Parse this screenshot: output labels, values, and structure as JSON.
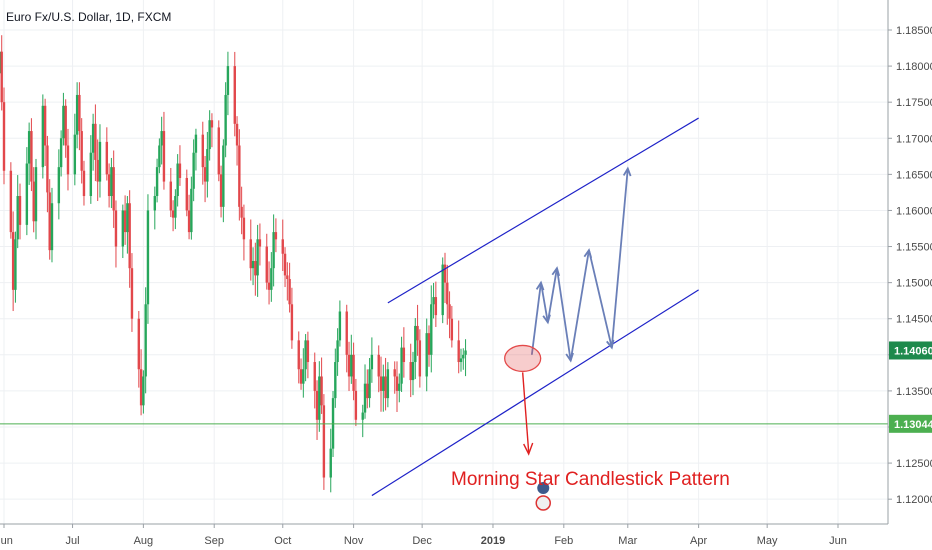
{
  "chart_data": {
    "type": "candlestick",
    "title": "Euro Fx/U.S. Dollar, 1D, FXCM",
    "xlabel": "",
    "ylabel": "",
    "ylim": [
      1.1185,
      1.1895
    ],
    "grid": true,
    "y_ticks": [
      "1.18500",
      "1.18000",
      "1.17500",
      "1.17000",
      "1.16500",
      "1.16000",
      "1.15500",
      "1.15000",
      "1.14500",
      "1.14000",
      "1.13500",
      "1.13000",
      "1.12500",
      "1.12000"
    ],
    "x_tick_labels": [
      "Jun",
      "Jul",
      "Aug",
      "Sep",
      "Oct",
      "Nov",
      "Dec",
      "2019",
      "Feb",
      "Mar",
      "Apr",
      "May",
      "Jun"
    ],
    "price_labels": {
      "current": {
        "text": "1.14060",
        "value": 1.1406,
        "color": "#1e8a4c"
      },
      "support": {
        "text": "1.13044",
        "value": 1.13044,
        "color": "#4caf50"
      }
    },
    "candles_close": [
      1.164,
      1.17,
      1.1745,
      1.169,
      1.161,
      1.172,
      1.179,
      1.182,
      1.175,
      1.1655,
      1.157,
      1.149,
      1.156,
      1.162,
      1.158,
      1.1665,
      1.171,
      1.164,
      1.1585,
      1.166,
      1.1745,
      1.169,
      1.1625,
      1.1545,
      1.161,
      1.166,
      1.17,
      1.1745,
      1.169,
      1.165,
      1.1705,
      1.176,
      1.171,
      1.1655,
      1.162,
      1.168,
      1.172,
      1.167,
      1.164,
      1.1695,
      1.165,
      1.162,
      1.166,
      1.16,
      1.155,
      1.16,
      1.157,
      1.161,
      1.152,
      1.145,
      1.138,
      1.133,
      1.137,
      1.147,
      1.16,
      1.162,
      1.166,
      1.169,
      1.171,
      1.164,
      1.16,
      1.159,
      1.162,
      1.1665,
      1.1645,
      1.16,
      1.157,
      1.163,
      1.168,
      1.1705,
      1.166,
      1.164,
      1.1685,
      1.1725,
      1.1715,
      1.165,
      1.1605,
      1.169,
      1.176,
      1.18,
      1.172,
      1.169,
      1.1605,
      1.159,
      1.156,
      1.152,
      1.153,
      1.151,
      1.156,
      1.155,
      1.15,
      1.149,
      1.152,
      1.157,
      1.156,
      1.154,
      1.151,
      1.1505,
      1.147,
      1.142,
      1.138,
      1.136,
      1.138,
      1.142,
      1.139,
      1.135,
      1.131,
      1.137,
      1.133,
      1.123,
      1.127,
      1.134,
      1.139,
      1.142,
      1.146,
      1.14,
      1.137,
      1.14,
      1.135,
      1.131,
      1.132,
      1.136,
      1.134,
      1.138,
      1.14,
      1.137,
      1.135,
      1.137,
      1.134,
      1.138,
      1.137,
      1.135,
      1.136,
      1.141,
      1.139,
      1.1365,
      1.139,
      1.144,
      1.142,
      1.137,
      1.143,
      1.14,
      1.147,
      1.148,
      1.1455,
      1.1525,
      1.15,
      1.147,
      1.145,
      1.142,
      1.139,
      1.1395,
      1.14,
      1.1406
    ],
    "channel": {
      "color": "#1e22c8",
      "upper": [
        {
          "x": "2018-11-16",
          "y": 1.1472
        },
        {
          "x": "2019-04-01",
          "y": 1.1728
        }
      ],
      "lower": [
        {
          "x": "2018-11-09",
          "y": 1.1205
        },
        {
          "x": "2019-04-01",
          "y": 1.149
        }
      ]
    },
    "support_line": {
      "y": 1.13044,
      "color": "#4caf50"
    },
    "forecast_path": {
      "color": "#6a7fb8",
      "points": [
        {
          "x": "2019-01-18",
          "y": 1.14
        },
        {
          "x": "2019-01-22",
          "y": 1.15
        },
        {
          "x": "2019-01-25",
          "y": 1.1445
        },
        {
          "x": "2019-01-29",
          "y": 1.152
        },
        {
          "x": "2019-02-04",
          "y": 1.1392
        },
        {
          "x": "2019-02-12",
          "y": 1.1545
        },
        {
          "x": "2019-02-22",
          "y": 1.141
        },
        {
          "x": "2019-03-01",
          "y": 1.1658
        }
      ]
    },
    "annotation": {
      "text": "Morning Star Candlestick Pattern",
      "color": "#e02020"
    },
    "highlight_ellipse_color": "#e34a4a"
  }
}
